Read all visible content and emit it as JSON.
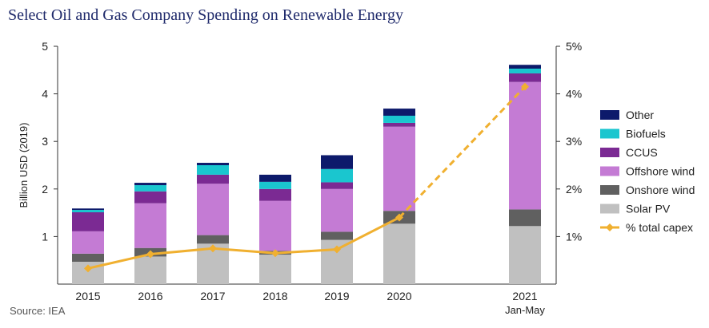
{
  "chart_data": {
    "type": "bar",
    "title": "Select Oil and Gas Company Spending on Renewable Energy",
    "ylabel": "Billion USD (2019)",
    "y2label": "",
    "categories": [
      "2015",
      "2016",
      "2017",
      "2018",
      "2019",
      "2020",
      "2021"
    ],
    "category_sublabels": [
      "",
      "",
      "",
      "",
      "",
      "",
      "Jan-May"
    ],
    "ylim": [
      0,
      5
    ],
    "yticks": [
      "1",
      "2",
      "3",
      "4",
      "5"
    ],
    "y2lim": [
      0,
      5
    ],
    "y2ticks": [
      "1%",
      "2%",
      "3%",
      "4%",
      "5%"
    ],
    "grid": false,
    "legend_position": "right",
    "series": [
      {
        "name": "Solar PV",
        "color": "#c0c0c0",
        "values": [
          0.47,
          0.58,
          0.85,
          0.62,
          0.93,
          1.27,
          1.22
        ]
      },
      {
        "name": "Onshore wind",
        "color": "#606060",
        "values": [
          0.17,
          0.18,
          0.18,
          0.08,
          0.17,
          0.27,
          0.35
        ]
      },
      {
        "name": "Offshore wind",
        "color": "#c47bd4",
        "values": [
          0.47,
          0.94,
          1.08,
          1.05,
          0.9,
          1.77,
          2.68
        ]
      },
      {
        "name": "CCUS",
        "color": "#7b2a93",
        "values": [
          0.4,
          0.25,
          0.19,
          0.25,
          0.14,
          0.08,
          0.18
        ]
      },
      {
        "name": "Biofuels",
        "color": "#1ac6cf",
        "values": [
          0.05,
          0.13,
          0.2,
          0.15,
          0.28,
          0.15,
          0.1
        ]
      },
      {
        "name": "Other",
        "color": "#0d1a6b",
        "values": [
          0.03,
          0.05,
          0.05,
          0.15,
          0.29,
          0.15,
          0.08
        ]
      }
    ],
    "line_series": {
      "name": "% total capex",
      "color": "#f0b030",
      "axis": "secondary",
      "values": [
        0.33,
        0.63,
        0.75,
        0.65,
        0.73,
        1.4,
        4.15
      ],
      "dashed_from_index": 5
    }
  },
  "source": "Source: IEA"
}
